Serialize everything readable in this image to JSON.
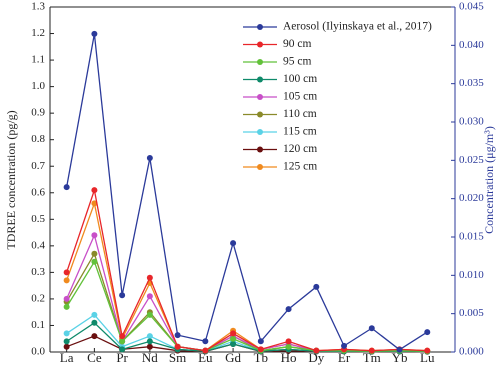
{
  "chart_data": {
    "type": "line",
    "categories": [
      "La",
      "Ce",
      "Pr",
      "Nd",
      "Sm",
      "Eu",
      "Gd",
      "Tb",
      "Ho",
      "Dy",
      "Er",
      "Tm",
      "Yb",
      "Lu"
    ],
    "ylabel": "TDREE concentration (pg/g)",
    "y2label": "Concentration (μg/m³)",
    "ylim": [
      0,
      1.3
    ],
    "yticks": [
      {
        "value": 0,
        "label": "0.0"
      },
      0.1,
      0.2,
      0.3,
      0.4,
      0.5,
      0.6,
      0.7,
      0.8,
      0.9,
      {
        "value": 1,
        "label": "1.0"
      },
      1.1,
      1.2,
      1.3
    ],
    "y2lim": [
      0,
      0.045
    ],
    "y2ticks": [
      {
        "value": 0,
        "label": "0.000"
      },
      0.005,
      {
        "value": 0.01,
        "label": "0.010"
      },
      0.015,
      {
        "value": 0.02,
        "label": "0.020"
      },
      0.025,
      {
        "value": 0.03,
        "label": "0.030"
      },
      0.035,
      {
        "value": 0.04,
        "label": "0.040"
      },
      0.045
    ],
    "legend": "upper right",
    "series": [
      {
        "name": "Aerosol (Ilyinskaya et al., 2017)",
        "color": "#2b3a9a",
        "axis": "y2",
        "values": [
          0.0215,
          0.0415,
          0.0074,
          0.0253,
          0.0022,
          0.0014,
          0.0142,
          0.0014,
          0.0056,
          0.0085,
          0.0008,
          0.0031,
          0.0003,
          0.0026
        ]
      },
      {
        "name": "90 cm",
        "color": "#e8262a",
        "values": [
          0.3,
          0.61,
          0.06,
          0.28,
          0.02,
          0.005,
          0.07,
          0.01,
          0.04,
          0.005,
          0.01,
          0.005,
          0.01,
          0.005
        ]
      },
      {
        "name": "95 cm",
        "color": "#62c13a",
        "values": [
          0.17,
          0.34,
          0.04,
          0.14,
          0.02,
          0.005,
          0.05,
          0.005,
          0.02,
          0.005,
          0.005,
          0.003,
          0.005,
          0.003
        ]
      },
      {
        "name": "100 cm",
        "color": "#0f8a6a",
        "values": [
          0.04,
          0.11,
          0.01,
          0.04,
          0.01,
          0.003,
          0.03,
          0.003,
          0.01,
          0.003,
          0.003,
          0.002,
          0.003,
          0.002
        ]
      },
      {
        "name": "105 cm",
        "color": "#c84fc8",
        "values": [
          0.2,
          0.44,
          0.04,
          0.21,
          0.02,
          0.005,
          0.06,
          0.01,
          0.03,
          0.005,
          0.005,
          0.003,
          0.01,
          0.003
        ]
      },
      {
        "name": "110 cm",
        "color": "#8a8a2a",
        "values": [
          0.19,
          0.37,
          0.04,
          0.15,
          0.02,
          0.005,
          0.06,
          0.005,
          0.02,
          0.005,
          0.005,
          0.003,
          0.005,
          0.003
        ]
      },
      {
        "name": "115 cm",
        "color": "#5ad2e6",
        "values": [
          0.07,
          0.14,
          0.02,
          0.06,
          0.01,
          0.003,
          0.04,
          0.003,
          0.01,
          0.003,
          0.003,
          0.002,
          0.003,
          0.002
        ]
      },
      {
        "name": "120 cm",
        "color": "#6a0f0f",
        "values": [
          0.02,
          0.06,
          0.01,
          0.02,
          0.005,
          0.002,
          0.03,
          0.002,
          0.005,
          0.002,
          0.002,
          0.001,
          0.002,
          0.001
        ]
      },
      {
        "name": "125 cm",
        "color": "#f08a1e",
        "values": [
          0.27,
          0.56,
          0.05,
          0.26,
          0.02,
          0.005,
          0.08,
          0.01,
          0.03,
          0.005,
          0.01,
          0.005,
          0.01,
          0.005
        ]
      }
    ]
  }
}
